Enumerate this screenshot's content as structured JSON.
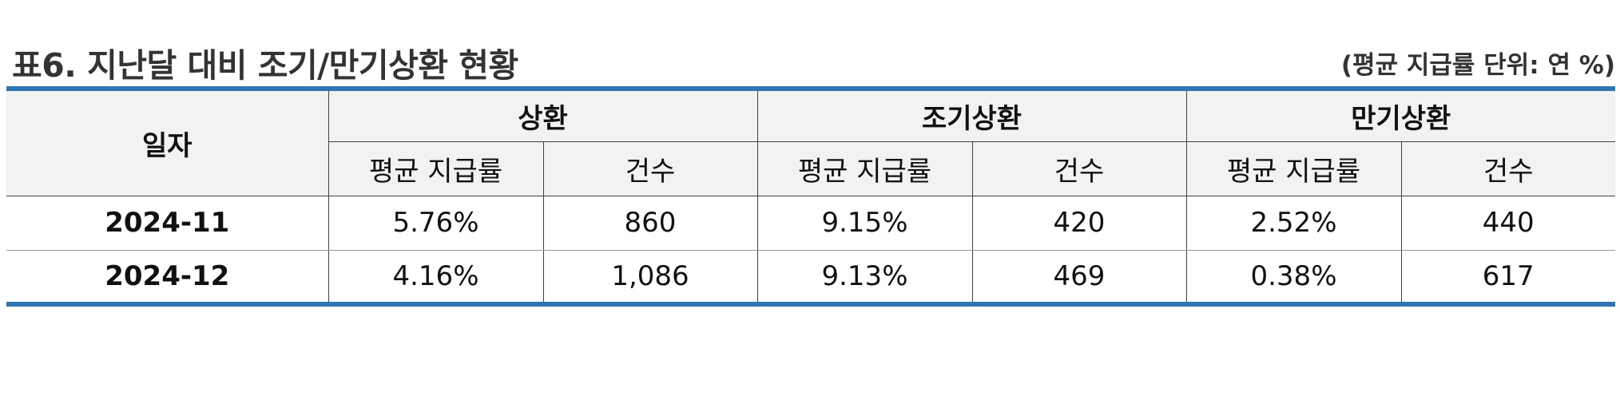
{
  "title": "표6. 지난달 대비 조기/만기상환 현황",
  "unit_note": "(평균 지급률 단위: 연 %)",
  "table": {
    "date_header": "일자",
    "groups": [
      "상환",
      "조기상환",
      "만기상환"
    ],
    "sub_headers": [
      "평균 지급률",
      "건수",
      "평균 지급률",
      "건수",
      "평균 지급률",
      "건수"
    ],
    "rows": [
      {
        "date": "2024-11",
        "cells": [
          "5.76%",
          "860",
          "9.15%",
          "420",
          "2.52%",
          "440"
        ]
      },
      {
        "date": "2024-12",
        "cells": [
          "4.16%",
          "1,086",
          "9.13%",
          "469",
          "0.38%",
          "617"
        ]
      }
    ]
  },
  "colors": {
    "accent_rule": "#2e75b6",
    "header_bg": "#f2f2f2",
    "grid_line": "#404040"
  }
}
